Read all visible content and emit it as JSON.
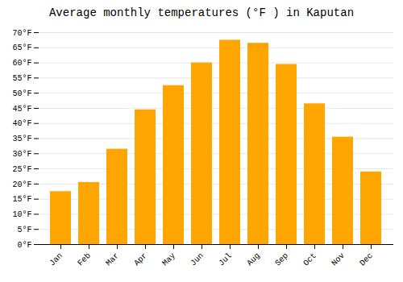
{
  "chart_data": {
    "type": "bar",
    "title": "Average monthly temperatures (°F ) in Kaputan",
    "categories": [
      "Jan",
      "Feb",
      "Mar",
      "Apr",
      "May",
      "Jun",
      "Jul",
      "Aug",
      "Sep",
      "Oct",
      "Nov",
      "Dec"
    ],
    "values": [
      17.5,
      20.5,
      31.5,
      44.5,
      52.5,
      60.0,
      67.5,
      66.5,
      59.5,
      46.5,
      35.5,
      24.0
    ],
    "color": "#FFA500",
    "ylim": [
      0,
      70
    ],
    "yticks": [
      {
        "value": 0,
        "label": "0°F"
      },
      {
        "value": 5,
        "label": "5°F"
      },
      {
        "value": 10,
        "label": "10°F"
      },
      {
        "value": 15,
        "label": "15°F"
      },
      {
        "value": 20,
        "label": "20°F"
      },
      {
        "value": 25,
        "label": "25°F"
      },
      {
        "value": 30,
        "label": "30°F"
      },
      {
        "value": 35,
        "label": "35°F"
      },
      {
        "value": 40,
        "label": "40°F"
      },
      {
        "value": 45,
        "label": "45°F"
      },
      {
        "value": 50,
        "label": "50°F"
      },
      {
        "value": 55,
        "label": "55°F"
      },
      {
        "value": 60,
        "label": "60°F"
      },
      {
        "value": 65,
        "label": "65°F"
      },
      {
        "value": 70,
        "label": "70°F"
      }
    ],
    "grid": true
  }
}
